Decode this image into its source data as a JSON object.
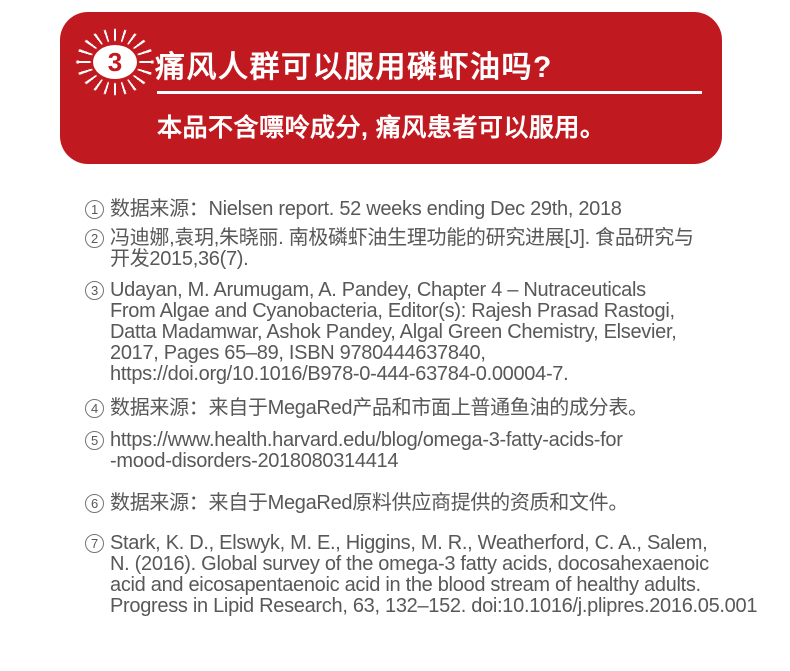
{
  "colors": {
    "brand_red": "#c0191f",
    "text_gray": "#595757",
    "white": "#ffffff"
  },
  "faq_card": {
    "badge_number": "3",
    "question": "痛风人群可以服用磷虾油吗?",
    "answer": "本品不含嘌呤成分, 痛风患者可以服用。"
  },
  "references": {
    "items": [
      {
        "marker": "1",
        "lines": [
          "数据来源：Nielsen report. 52 weeks ending Dec 29th, 2018"
        ]
      },
      {
        "marker": "2",
        "lines": [
          "冯迪娜,袁玥,朱晓丽. 南极磷虾油生理功能的研究进展[J]. 食品研究与",
          "开发2015,36(7)."
        ]
      },
      {
        "marker": "3",
        "lines": [
          "Udayan, M. Arumugam, A. Pandey, Chapter 4 – Nutraceuticals",
          "From Algae and Cyanobacteria, Editor(s): Rajesh Prasad Rastogi,",
          "Datta Madamwar, Ashok Pandey, Algal Green Chemistry, Elsevier,",
          "2017, Pages 65–89, ISBN 9780444637840,",
          "https://doi.org/10.1016/B978-0-444-63784-0.00004-7."
        ]
      },
      {
        "marker": "4",
        "lines": [
          "数据来源：来自于MegaRed产品和市面上普通鱼油的成分表。"
        ]
      },
      {
        "marker": "5",
        "lines": [
          "https://www.health.harvard.edu/blog/omega-3-fatty-acids-for",
          "-mood-disorders-2018080314414"
        ]
      },
      {
        "marker": "6",
        "lines": [
          "数据来源：来自于MegaRed原料供应商提供的资质和文件。"
        ]
      },
      {
        "marker": "7",
        "lines": [
          "Stark, K. D., Elswyk, M. E., Higgins, M. R., Weatherford, C. A., Salem,",
          "N. (2016). Global survey of the omega-3 fatty acids, docosahexaenoic",
          "acid and eicosapentaenoic acid in the blood stream of healthy adults.",
          "Progress in Lipid Research, 63, 132–152. doi:10.1016/j.plipres.2016.05.001"
        ]
      }
    ]
  }
}
